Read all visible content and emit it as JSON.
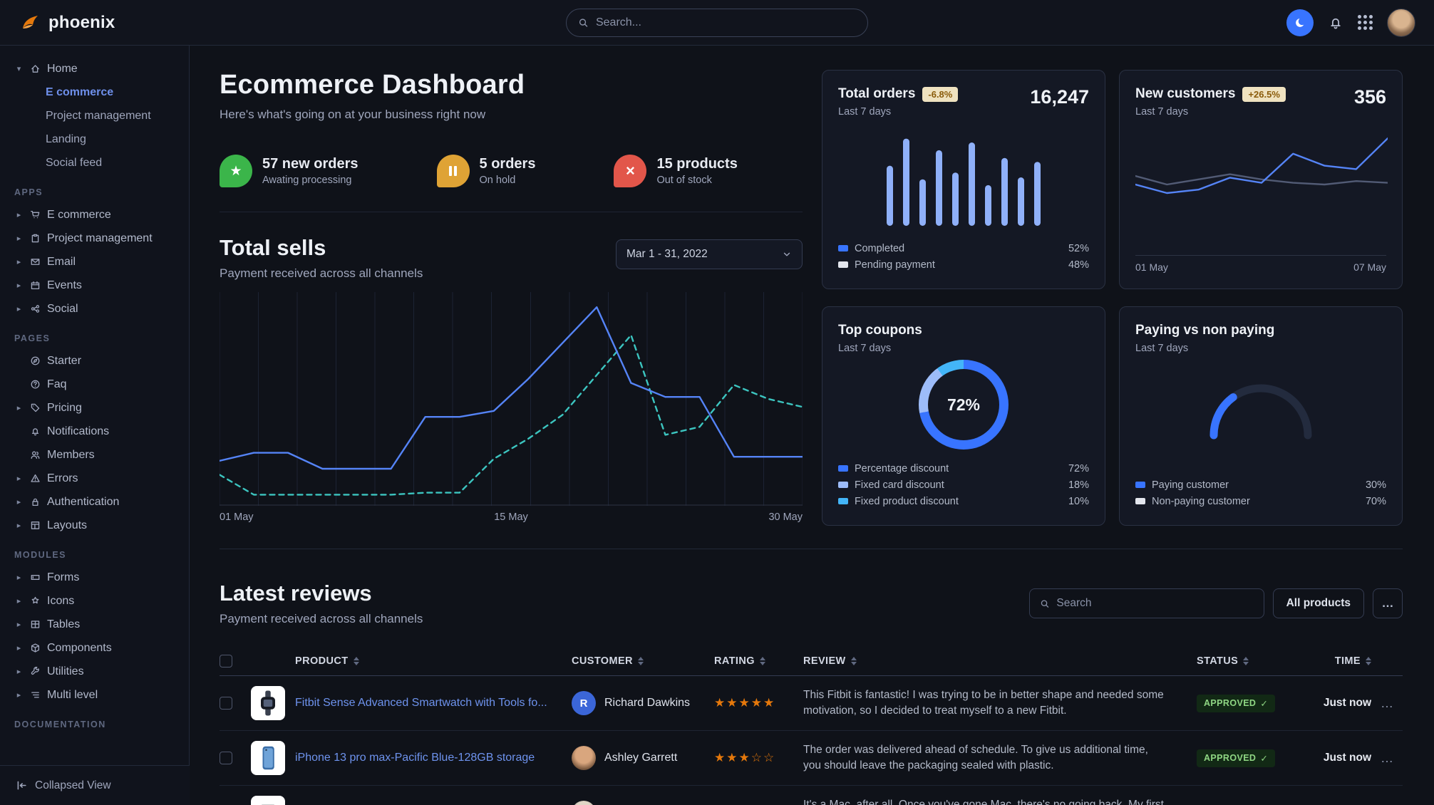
{
  "brand": {
    "name": "phoenix"
  },
  "navbar": {
    "search_placeholder": "Search...",
    "icons": [
      "moon-icon",
      "bell-icon",
      "apps-grid-icon",
      "user-avatar"
    ]
  },
  "sidebar": {
    "home_group": {
      "label": "Home",
      "children": [
        {
          "label": "E commerce",
          "active": true
        },
        {
          "label": "Project management",
          "active": false
        },
        {
          "label": "Landing",
          "active": false
        },
        {
          "label": "Social feed",
          "active": false
        }
      ]
    },
    "sections": [
      {
        "title": "APPS",
        "items": [
          {
            "label": "E commerce",
            "icon": "cart",
            "caret": true
          },
          {
            "label": "Project management",
            "icon": "clipboard",
            "caret": true
          },
          {
            "label": "Email",
            "icon": "mail",
            "caret": true
          },
          {
            "label": "Events",
            "icon": "calendar",
            "caret": true
          },
          {
            "label": "Social",
            "icon": "share",
            "caret": true
          }
        ]
      },
      {
        "title": "PAGES",
        "items": [
          {
            "label": "Starter",
            "icon": "compass",
            "caret": false
          },
          {
            "label": "Faq",
            "icon": "help",
            "caret": false
          },
          {
            "label": "Pricing",
            "icon": "tag",
            "caret": true
          },
          {
            "label": "Notifications",
            "icon": "bell",
            "caret": false
          },
          {
            "label": "Members",
            "icon": "users",
            "caret": false
          },
          {
            "label": "Errors",
            "icon": "alert",
            "caret": true
          },
          {
            "label": "Authentication",
            "icon": "lock",
            "caret": true
          },
          {
            "label": "Layouts",
            "icon": "layout",
            "caret": true
          }
        ]
      },
      {
        "title": "MODULES",
        "items": [
          {
            "label": "Forms",
            "icon": "form",
            "caret": true
          },
          {
            "label": "Icons",
            "icon": "shapes",
            "caret": true
          },
          {
            "label": "Tables",
            "icon": "table",
            "caret": true
          },
          {
            "label": "Components",
            "icon": "cube",
            "caret": true
          },
          {
            "label": "Utilities",
            "icon": "tool",
            "caret": true
          },
          {
            "label": "Multi level",
            "icon": "list",
            "caret": true
          }
        ]
      },
      {
        "title": "DOCUMENTATION",
        "items": []
      }
    ],
    "footer": {
      "label": "Collapsed View"
    }
  },
  "header": {
    "title": "Ecommerce Dashboard",
    "subtitle": "Here's what's going on at your business right now"
  },
  "stats": [
    {
      "icon": "star",
      "color": "#3bb54a",
      "value": "57 new orders",
      "caption": "Awating processing"
    },
    {
      "icon": "pause",
      "color": "#dfa335",
      "value": "5 orders",
      "caption": "On hold"
    },
    {
      "icon": "x",
      "color": "#e2564a",
      "value": "15 products",
      "caption": "Out of stock"
    }
  ],
  "total_sells": {
    "title": "Total sells",
    "subtitle": "Payment received across all channels",
    "date_range": "Mar 1 - 31, 2022",
    "chart_data": {
      "type": "line",
      "x_ticks": [
        "01 May",
        "15 May",
        "30 May"
      ],
      "ylim": [
        0,
        100
      ],
      "grid": "vertical",
      "series": [
        {
          "name": "previous period",
          "style": "dashed",
          "color": "#3cc5c0",
          "values": [
            12,
            2,
            2,
            2,
            2,
            2,
            3,
            3,
            20,
            30,
            42,
            62,
            82,
            32,
            36,
            57,
            50,
            46
          ]
        },
        {
          "name": "current period",
          "style": "solid",
          "color": "#5584f7",
          "values": [
            19,
            23,
            23,
            15,
            15,
            15,
            41,
            41,
            44,
            60,
            78,
            96,
            58,
            51,
            51,
            21,
            21,
            21
          ]
        }
      ]
    }
  },
  "cards": {
    "total_orders": {
      "title": "Total orders",
      "badge": "-6.8%",
      "period": "Last 7 days",
      "value": "16,247",
      "chart_data": {
        "type": "bar",
        "values": [
          62,
          90,
          48,
          78,
          55,
          86,
          42,
          70,
          50,
          66
        ],
        "color": "#8fb0f9"
      },
      "legend": [
        {
          "label": "Completed",
          "value": 52,
          "color": "#3874ff"
        },
        {
          "label": "Pending payment",
          "value": 48,
          "color": "#e3e6ed"
        }
      ]
    },
    "new_customers": {
      "title": "New customers",
      "badge": "+26.5%",
      "period": "Last 7 days",
      "value": "356",
      "chart_data": {
        "type": "line",
        "x_ticks": [
          "01 May",
          "07 May"
        ],
        "series": [
          {
            "name": "previous",
            "style": "solid",
            "color": "#525b75",
            "values": [
              50,
              40,
              46,
              52,
              46,
              42,
              40,
              44,
              42
            ]
          },
          {
            "name": "current",
            "style": "solid",
            "color": "#5584f7",
            "values": [
              40,
              30,
              34,
              48,
              42,
              76,
              62,
              58,
              94
            ]
          }
        ]
      }
    },
    "top_coupons": {
      "title": "Top coupons",
      "period": "Last 7 days",
      "center_label": "72%",
      "chart_data": {
        "type": "donut",
        "values": [
          72,
          18,
          10
        ]
      },
      "legend": [
        {
          "label": "Percentage discount",
          "value": 72,
          "color": "#3874ff"
        },
        {
          "label": "Fixed card discount",
          "value": 18,
          "color": "#9dbcf9"
        },
        {
          "label": "Fixed product discount",
          "value": 10,
          "color": "#43b5f8"
        }
      ]
    },
    "paying": {
      "title": "Paying vs non paying",
      "period": "Last 7 days",
      "chart_data": {
        "type": "gauge",
        "value": 30,
        "color": "#3874ff"
      },
      "legend": [
        {
          "label": "Paying customer",
          "value": 30,
          "color": "#3874ff"
        },
        {
          "label": "Non-paying customer",
          "value": 70,
          "color": "#e3e6ed"
        }
      ]
    }
  },
  "reviews": {
    "title": "Latest reviews",
    "subtitle": "Payment received across all channels",
    "search_placeholder": "Search",
    "filter_label": "All products",
    "more_label": "…",
    "columns": [
      "PRODUCT",
      "CUSTOMER",
      "RATING",
      "REVIEW",
      "STATUS",
      "TIME"
    ],
    "rows": [
      {
        "product": "Fitbit Sense Advanced Smartwatch with Tools fo...",
        "product_image": "watch",
        "customer": "Richard Dawkins",
        "avatar": {
          "type": "initial",
          "text": "R",
          "color": "#3b66d8"
        },
        "rating": 5,
        "review": "This Fitbit is fantastic! I was trying to be in better shape and needed some motivation, so I decided to treat myself to a new Fitbit.",
        "status": "APPROVED",
        "time": "Just now"
      },
      {
        "product": "iPhone 13 pro max-Pacific Blue-128GB storage",
        "product_image": "phone",
        "customer": "Ashley Garrett",
        "avatar": {
          "type": "photo-1"
        },
        "rating": 3,
        "review": "The order was delivered ahead of schedule. To give us additional time, you should leave the packaging sealed with plastic.",
        "status": "APPROVED",
        "time": "Just now"
      },
      {
        "product": "",
        "product_image": "laptop",
        "customer": "",
        "avatar": {
          "type": "photo-2"
        },
        "rating": null,
        "review": "It's a Mac, after all. Once you've gone Mac, there's no going back. My first Mac lasted...",
        "status": "",
        "time": ""
      }
    ]
  }
}
